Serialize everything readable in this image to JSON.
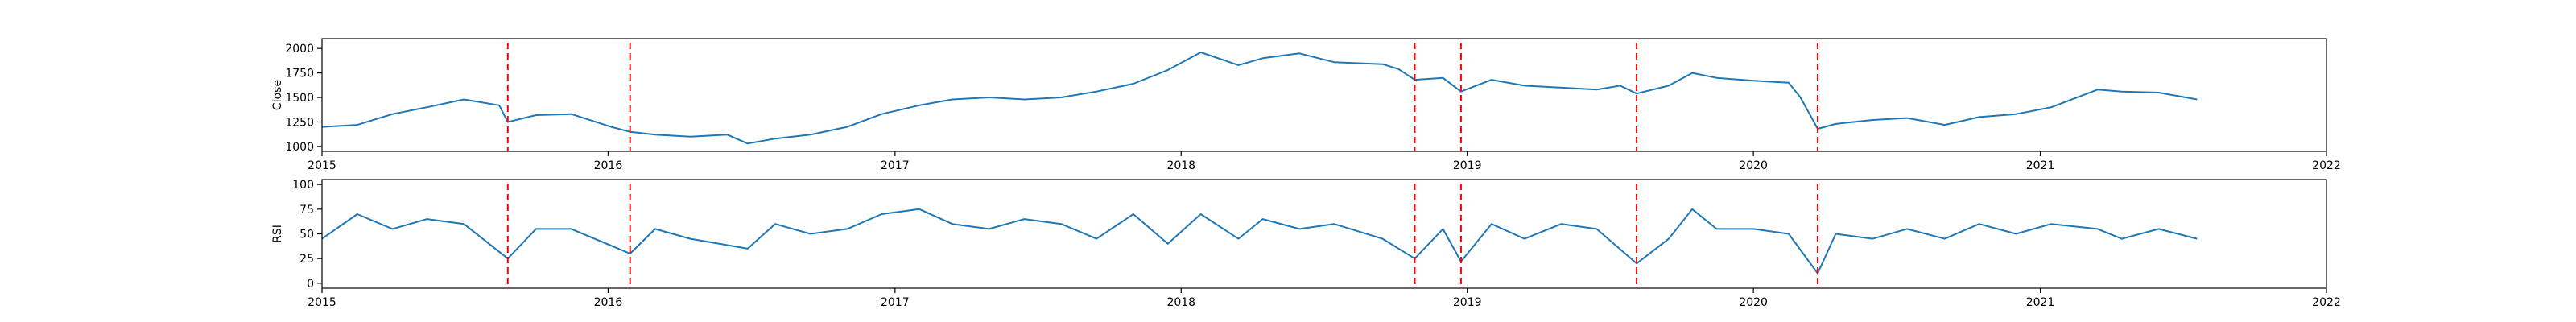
{
  "chart_data": [
    {
      "type": "line",
      "ylabel": "Close",
      "xlabel": "",
      "xlim": [
        "2015-01-01",
        "2022-01-01"
      ],
      "ylim": [
        950,
        2100
      ],
      "xticks": [
        "2015",
        "2016",
        "2017",
        "2018",
        "2019",
        "2020",
        "2021",
        "2022"
      ],
      "yticks": [
        1000,
        1250,
        1500,
        1750,
        2000
      ],
      "grid": false,
      "series_color": "#1f77b4",
      "x": [
        "2015-01-01",
        "2015-02-15",
        "2015-04-01",
        "2015-05-15",
        "2015-07-01",
        "2015-08-15",
        "2015-08-26",
        "2015-10-01",
        "2015-11-15",
        "2016-01-05",
        "2016-01-29",
        "2016-03-01",
        "2016-04-15",
        "2016-06-01",
        "2016-06-27",
        "2016-08-01",
        "2016-09-15",
        "2016-11-01",
        "2016-12-15",
        "2017-02-01",
        "2017-03-15",
        "2017-05-01",
        "2017-06-15",
        "2017-08-01",
        "2017-09-15",
        "2017-11-01",
        "2017-12-15",
        "2018-01-26",
        "2018-03-15",
        "2018-04-15",
        "2018-06-01",
        "2018-07-15",
        "2018-09-15",
        "2018-10-05",
        "2018-10-26",
        "2018-12-01",
        "2018-12-24",
        "2019-02-01",
        "2019-03-15",
        "2019-05-01",
        "2019-06-15",
        "2019-07-15",
        "2019-08-05",
        "2019-09-15",
        "2019-10-15",
        "2019-11-15",
        "2020-01-01",
        "2020-02-15",
        "2020-03-01",
        "2020-03-23",
        "2020-04-15",
        "2020-06-01",
        "2020-07-15",
        "2020-09-01",
        "2020-10-15",
        "2020-12-01",
        "2021-01-15",
        "2021-03-15",
        "2021-04-15",
        "2021-06-01",
        "2021-07-20"
      ],
      "values": [
        1200,
        1220,
        1330,
        1400,
        1480,
        1420,
        1250,
        1320,
        1330,
        1200,
        1150,
        1120,
        1100,
        1120,
        1030,
        1080,
        1120,
        1200,
        1330,
        1420,
        1480,
        1500,
        1480,
        1500,
        1560,
        1640,
        1780,
        1960,
        1830,
        1900,
        1950,
        1860,
        1840,
        1790,
        1680,
        1700,
        1560,
        1680,
        1620,
        1600,
        1580,
        1620,
        1540,
        1620,
        1750,
        1700,
        1670,
        1650,
        1500,
        1180,
        1230,
        1270,
        1290,
        1220,
        1300,
        1330,
        1400,
        1580,
        1560,
        1550,
        1480
      ]
    },
    {
      "type": "line",
      "ylabel": "RSI",
      "xlabel": "",
      "xlim": [
        "2015-01-01",
        "2022-01-01"
      ],
      "ylim": [
        -5,
        105
      ],
      "xticks": [
        "2015",
        "2016",
        "2017",
        "2018",
        "2019",
        "2020",
        "2021",
        "2022"
      ],
      "yticks": [
        0,
        25,
        50,
        75,
        100
      ],
      "grid": false,
      "series_color": "#1f77b4",
      "x": [
        "2015-01-01",
        "2015-02-15",
        "2015-04-01",
        "2015-05-15",
        "2015-07-01",
        "2015-08-26",
        "2015-10-01",
        "2015-11-15",
        "2016-01-29",
        "2016-03-01",
        "2016-04-15",
        "2016-06-27",
        "2016-08-01",
        "2016-09-15",
        "2016-11-01",
        "2016-12-15",
        "2017-02-01",
        "2017-03-15",
        "2017-05-01",
        "2017-06-15",
        "2017-08-01",
        "2017-09-15",
        "2017-11-01",
        "2017-12-15",
        "2018-01-26",
        "2018-03-15",
        "2018-04-15",
        "2018-06-01",
        "2018-07-15",
        "2018-09-15",
        "2018-10-26",
        "2018-12-01",
        "2018-12-24",
        "2019-02-01",
        "2019-03-15",
        "2019-05-01",
        "2019-06-15",
        "2019-08-05",
        "2019-09-15",
        "2019-10-15",
        "2019-11-15",
        "2020-01-01",
        "2020-02-15",
        "2020-03-23",
        "2020-04-15",
        "2020-06-01",
        "2020-07-15",
        "2020-09-01",
        "2020-10-15",
        "2020-12-01",
        "2021-01-15",
        "2021-03-15",
        "2021-04-15",
        "2021-06-01",
        "2021-07-20"
      ],
      "values": [
        45,
        70,
        55,
        65,
        60,
        25,
        55,
        55,
        30,
        55,
        45,
        35,
        60,
        50,
        55,
        70,
        75,
        60,
        55,
        65,
        60,
        45,
        70,
        40,
        70,
        45,
        65,
        55,
        60,
        45,
        25,
        55,
        22,
        60,
        45,
        60,
        55,
        20,
        45,
        75,
        55,
        55,
        50,
        10,
        50,
        45,
        55,
        45,
        60,
        50,
        60,
        55,
        45,
        55,
        45
      ]
    }
  ],
  "event_dates": [
    "2015-08-26",
    "2016-01-29",
    "2018-10-26",
    "2018-12-24",
    "2019-08-05",
    "2020-03-23"
  ],
  "event_line_color": "#ff0000"
}
